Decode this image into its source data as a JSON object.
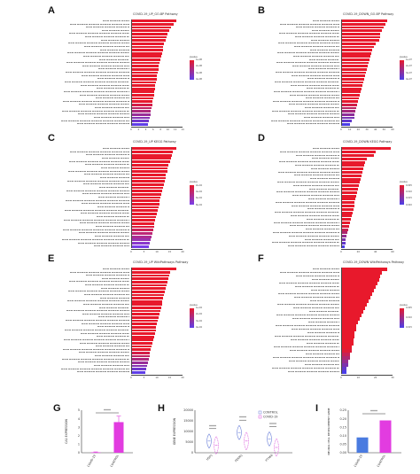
{
  "chart_data": [
    {
      "id": "A",
      "letter": "A",
      "type": "bar",
      "orientation": "horizontal",
      "title": "COVID-19_UP_GO-BP Pathway",
      "xlim": [
        0,
        14
      ],
      "xticks": [
        "0",
        "2",
        "4",
        "6",
        "8",
        "10",
        "12",
        "14"
      ],
      "legend_title": "pvalue",
      "legend_labels": [
        "1e-08",
        "2e-08",
        "3e-08",
        "4e-08"
      ],
      "color_high": "#e8192c",
      "color_low": "#5f3ee8",
      "values": [
        12.2,
        11.6,
        10.9,
        10.3,
        9.9,
        9.6,
        9.3,
        9.0,
        8.8,
        8.6,
        8.4,
        8.2,
        8.0,
        7.8,
        7.6,
        7.4,
        7.3,
        7.1,
        6.9,
        6.8,
        6.6,
        6.5,
        6.3,
        6.2,
        6.0,
        5.9,
        5.7,
        5.6,
        5.4,
        5.2,
        5.0,
        4.8,
        4.6
      ]
    },
    {
      "id": "B",
      "letter": "B",
      "type": "bar",
      "orientation": "horizontal",
      "title": "COVID-19_DOWN_GO-BP Pathway",
      "xlim": [
        0,
        60
      ],
      "xticks": [
        "0",
        "10",
        "20",
        "30",
        "40",
        "50",
        "60"
      ],
      "legend_title": "pvalue",
      "legend_labels": [
        "1e-07",
        "2e-07",
        "3e-07",
        "4e-07"
      ],
      "color_high": "#e8192c",
      "color_low": "#4b3ee8",
      "values": [
        54,
        52,
        50,
        48,
        46,
        45,
        44,
        40,
        38,
        36,
        35,
        34,
        33,
        32,
        31,
        30,
        29,
        28,
        27,
        26,
        25,
        24,
        23,
        22,
        21,
        20,
        19,
        18,
        17,
        16,
        15,
        12,
        10
      ]
    },
    {
      "id": "C",
      "letter": "C",
      "type": "bar",
      "orientation": "horizontal",
      "title": "COVID-19_UP KEGG Pathway",
      "xlim": [
        0,
        20
      ],
      "xticks": [
        "0",
        "5",
        "10",
        "15",
        "20"
      ],
      "legend_title": "pvalue",
      "legend_labels": [
        "2e-04",
        "4e-04",
        "6e-04",
        "8e-04"
      ],
      "color_high": "#e8192c",
      "color_low": "#7a3ee8",
      "values": [
        17.5,
        16.2,
        15.8,
        15.4,
        15.0,
        14.6,
        14.3,
        14.0,
        13.6,
        13.3,
        13.0,
        12.7,
        12.4,
        12.1,
        11.8,
        11.5,
        11.2,
        10.9,
        10.6,
        10.3,
        10.0,
        9.7,
        9.4,
        9.1,
        8.8,
        8.5,
        8.2,
        7.9,
        7.6,
        7.3,
        7.0
      ]
    },
    {
      "id": "D",
      "letter": "D",
      "type": "bar",
      "orientation": "horizontal",
      "title": "COVID-19_DOWN KEGG Pathway",
      "xlim": [
        0,
        60
      ],
      "xticks": [
        "0",
        "20",
        "40",
        "60"
      ],
      "legend_title": "pvalue",
      "legend_labels": [
        "0.005",
        "0.010",
        "0.015",
        "0.020"
      ],
      "color_high": "#e8192c",
      "color_low": "#4b3ee8",
      "values": [
        58,
        40,
        38,
        30,
        28,
        27,
        26,
        25,
        24,
        23,
        22,
        21,
        20,
        19,
        18,
        17,
        16,
        15,
        14,
        13,
        12,
        11,
        10,
        9,
        8,
        7,
        6,
        5,
        5,
        4
      ]
    },
    {
      "id": "E",
      "letter": "E",
      "type": "bar",
      "orientation": "horizontal",
      "title": "COVID-19_UP WikiPathways Pathway",
      "xlim": [
        0,
        20
      ],
      "xticks": [
        "0",
        "5",
        "10",
        "15",
        "20"
      ],
      "legend_title": "pvalue",
      "legend_labels": [
        "1e-04",
        "2e-04",
        "3e-04",
        "4e-04"
      ],
      "color_high": "#e8192c",
      "color_low": "#5f3ee8",
      "values": [
        17.5,
        15.2,
        14.8,
        14.4,
        14.0,
        13.7,
        13.4,
        13.1,
        12.8,
        12.5,
        12.2,
        11.9,
        11.6,
        11.3,
        11.0,
        10.7,
        10.4,
        10.1,
        9.8,
        9.5,
        9.2,
        8.9,
        8.6,
        8.3,
        8.0,
        7.7,
        7.4,
        7.1,
        6.8,
        6.5,
        6.2,
        5.9,
        5.6
      ]
    },
    {
      "id": "F",
      "letter": "F",
      "type": "bar",
      "orientation": "horizontal",
      "title": "COVID-19_DOWN WikiPathways Pathway",
      "xlim": [
        0,
        30
      ],
      "xticks": [
        "0",
        "10",
        "20",
        "30"
      ],
      "legend_title": "pvalue",
      "legend_labels": [
        "0.005",
        "0.010",
        "0.015"
      ],
      "color_high": "#e8192c",
      "color_low": "#4b3ee8",
      "values": [
        27,
        24,
        23,
        22,
        21,
        20,
        19,
        18,
        17,
        16,
        15,
        14,
        13,
        12,
        11,
        10,
        9,
        9,
        8,
        8,
        7,
        7,
        6,
        6,
        5,
        5,
        4,
        4,
        3,
        3
      ]
    },
    {
      "id": "G",
      "letter": "G",
      "type": "bar",
      "ylabel": "CA1 EXPRESSION",
      "categories": [
        "COVID-19",
        "CONTROL"
      ],
      "values": [
        0.05,
        3.6
      ],
      "errors": [
        0.05,
        0.7
      ],
      "ylim": [
        0,
        5
      ],
      "yticks": [
        "0",
        "1",
        "2",
        "3",
        "4",
        "5"
      ],
      "significance": "****",
      "color": "#e23ce0"
    },
    {
      "id": "H",
      "letter": "H",
      "type": "violin",
      "ylabel": "GENE EXPRESSION",
      "categories": [
        "HSP1",
        "FERM1",
        "PTX66"
      ],
      "ylim": [
        0,
        20000
      ],
      "yticks": [
        "0",
        "5000",
        "10000",
        "15000",
        "20000"
      ],
      "legend": [
        "CONTROL",
        "COVID-19"
      ],
      "significance": [
        "****",
        "****",
        "****"
      ],
      "series": [
        {
          "name": "CONTROL",
          "values": [
            5500,
            9500,
            6500
          ]
        },
        {
          "name": "COVID-19",
          "values": [
            3500,
            5500,
            2500
          ]
        }
      ],
      "color_control": "#6a7fd8",
      "color_covid": "#d94fd9"
    },
    {
      "id": "I",
      "letter": "I",
      "type": "bar",
      "ylabel": "NEURAL CELL DEVELOPMENT GENE",
      "categories": [
        "COVID-19",
        "CONTROL"
      ],
      "values": [
        0.09,
        0.19
      ],
      "ylim": [
        0,
        0.25
      ],
      "yticks": [
        "0.00",
        "0.05",
        "0.10",
        "0.15",
        "0.20",
        "0.25"
      ],
      "significance": "****",
      "colors": [
        "#4a7be0",
        "#e23ce0"
      ]
    }
  ]
}
